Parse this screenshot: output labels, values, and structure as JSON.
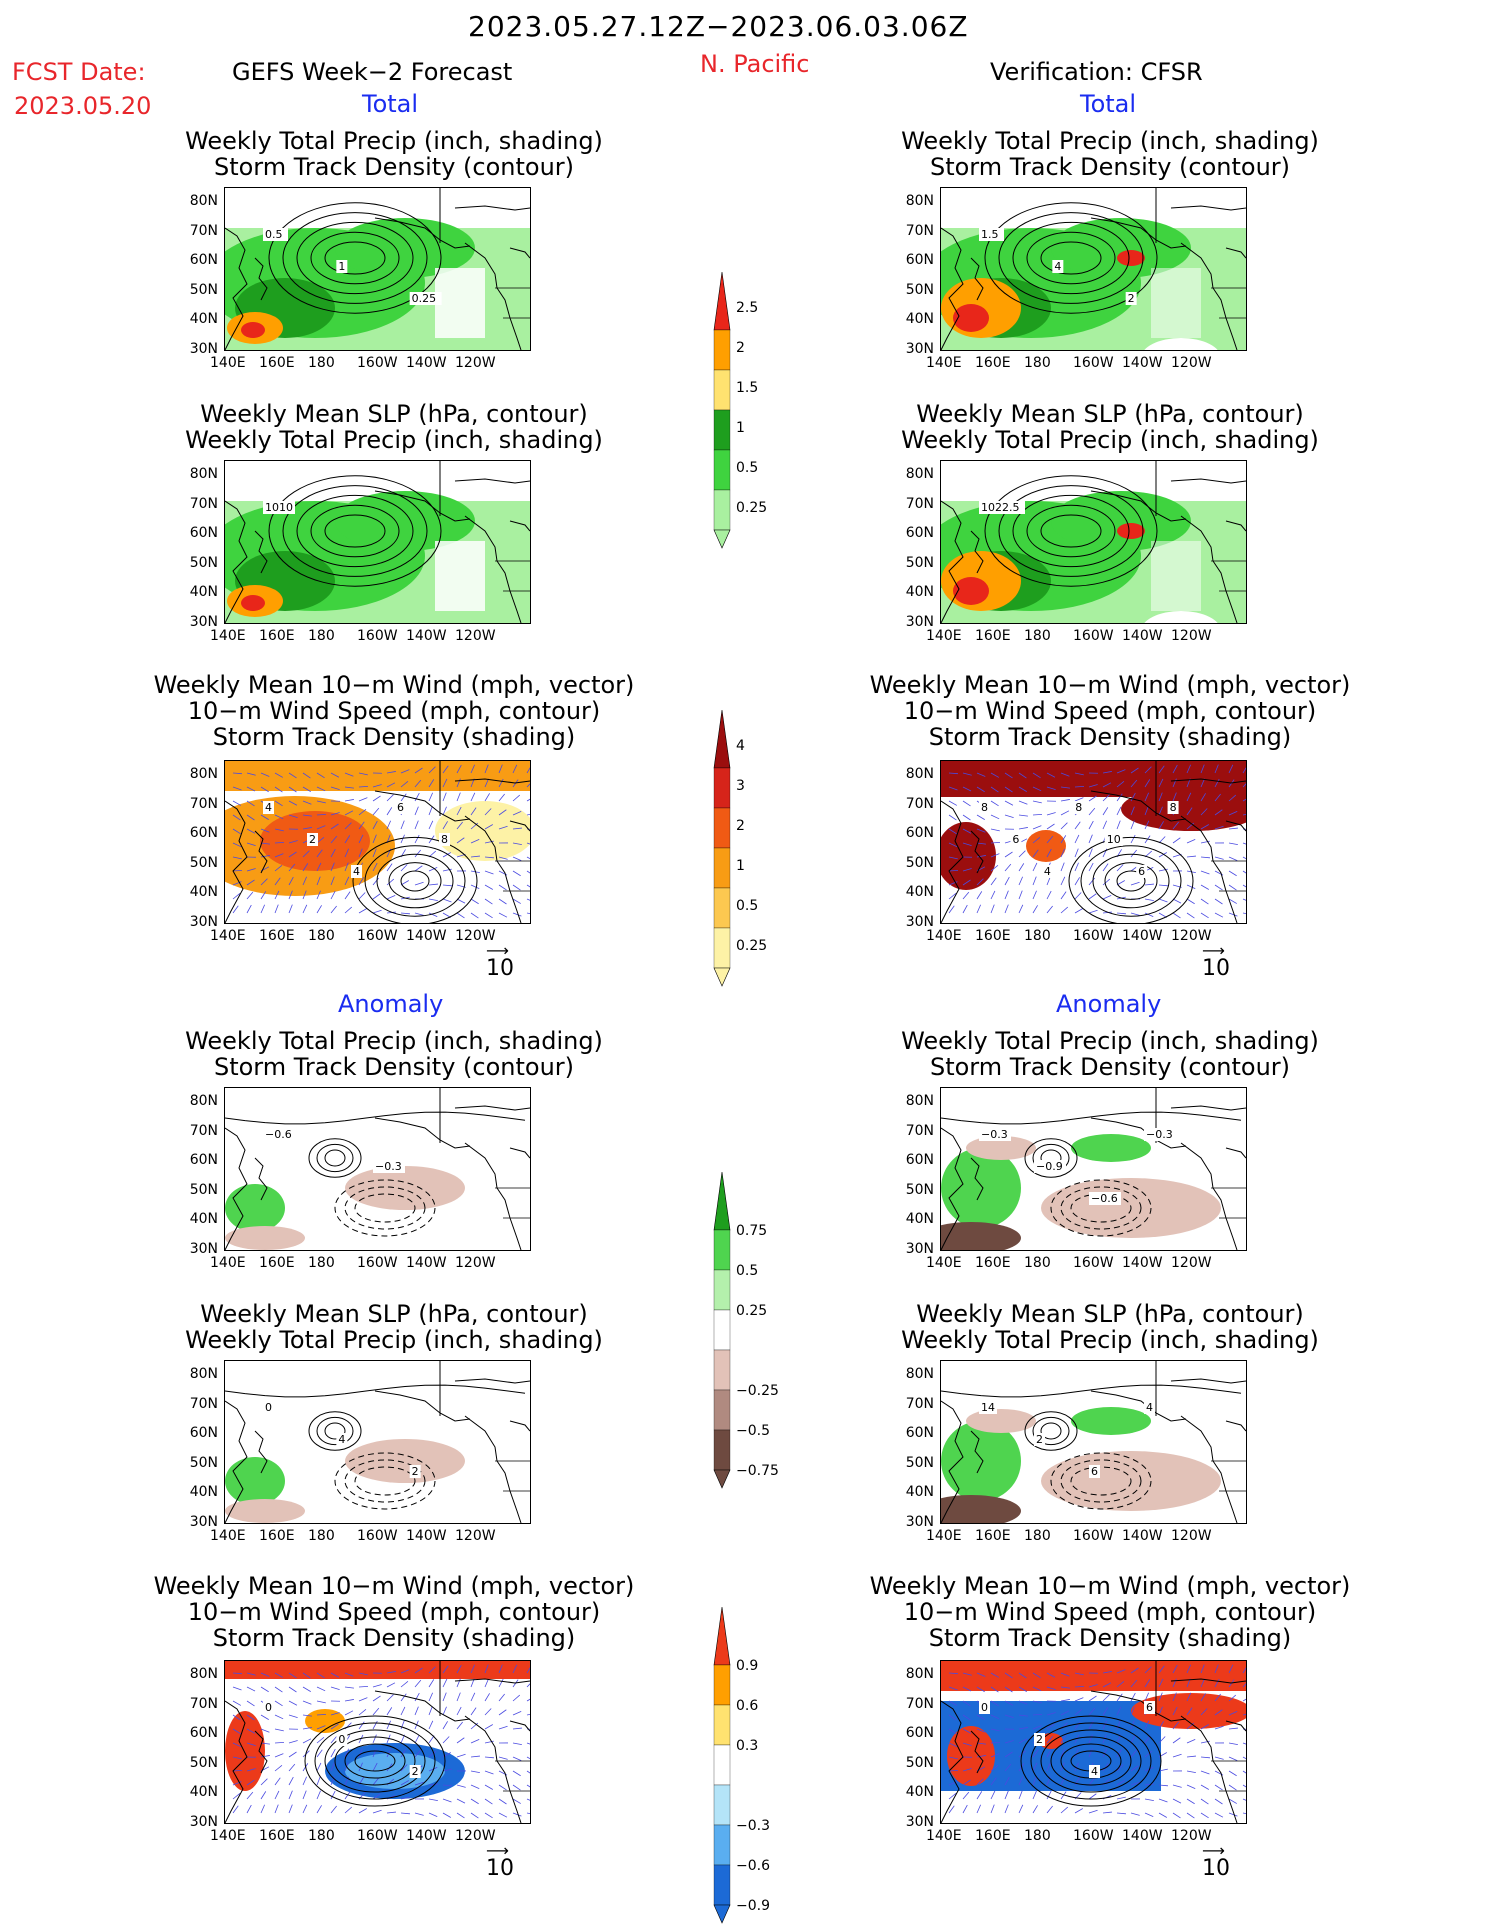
{
  "header": {
    "date_range": "2023.05.27.12Z−2023.06.03.06Z",
    "fcst_label": "FCST Date:",
    "fcst_date": "2023.05.20",
    "forecast_title": "GEFS Week−2 Forecast",
    "region": "N. Pacific",
    "verification": "Verification: CFSR",
    "total_label": "Total",
    "anomaly_label": "Anomaly"
  },
  "axes": {
    "lat_ticks": [
      "80N",
      "70N",
      "60N",
      "50N",
      "40N",
      "30N"
    ],
    "lon_ticks": [
      "140E",
      "160E",
      "180",
      "160W",
      "140W",
      "120W"
    ]
  },
  "panel_titles": {
    "precip_track": [
      "Weekly Total Precip (inch, shading)",
      "Storm Track Density (contour)"
    ],
    "slp_precip": [
      "Weekly Mean SLP (hPa, contour)",
      "Weekly Total Precip (inch, shading)"
    ],
    "wind_track": [
      "Weekly Mean 10−m Wind (mph, vector)",
      "10−m Wind Speed (mph, contour)",
      "Storm Track Density (shading)"
    ]
  },
  "vector_ref": "10",
  "colorbars": {
    "precip_total": {
      "labels": [
        "2.5",
        "2",
        "1.5",
        "1",
        "0.5",
        "0.25"
      ],
      "colors": [
        "#e8261a",
        "#ff9f00",
        "#ffe270",
        "#1e9e1e",
        "#3fd33f",
        "#a9f0a0"
      ]
    },
    "track_total": {
      "labels": [
        "4",
        "3",
        "2",
        "1",
        "0.5",
        "0.25"
      ],
      "colors": [
        "#9b0e0e",
        "#d6241a",
        "#f05a14",
        "#f89c14",
        "#fcc850",
        "#fdf2a6"
      ]
    },
    "precip_anom": {
      "labels": [
        "0.75",
        "0.5",
        "0.25",
        "−0.25",
        "−0.5",
        "−0.75"
      ],
      "colors": [
        "#1e9e1e",
        "#4fd44f",
        "#b4f0ac",
        "#ffffff",
        "#e2c2b8",
        "#b08a80",
        "#6e4a40"
      ]
    },
    "track_anom": {
      "labels": [
        "0.9",
        "0.6",
        "0.3",
        "−0.3",
        "−0.6",
        "−0.9"
      ],
      "colors": [
        "#ec3a1a",
        "#ff9f00",
        "#ffe270",
        "#ffffff",
        "#b4e4f8",
        "#5aaef0",
        "#1c6ad6"
      ]
    }
  },
  "contour_labels": {
    "fcst_precip_track_total": [
      "0.5",
      "1",
      "0.25"
    ],
    "fcst_slp_total": [
      "1010"
    ],
    "fcst_wind_total": [
      "4",
      "2",
      "4",
      "6",
      "8"
    ],
    "ver_precip_track_total": [
      "1.5",
      "4",
      "2"
    ],
    "ver_slp_total": [
      "1022.5"
    ],
    "ver_wind_total": [
      "8",
      "6",
      "4",
      "8",
      "10",
      "6",
      "8"
    ],
    "fcst_precip_track_anom": [
      "−0.6",
      "−0.3"
    ],
    "fcst_slp_anom": [
      "0",
      "4",
      "2"
    ],
    "fcst_wind_anom": [
      "0",
      "0",
      "2"
    ],
    "ver_precip_track_anom": [
      "−0.3",
      "−0.9",
      "−0.6",
      "−0.3"
    ],
    "ver_slp_anom": [
      "14",
      "2",
      "6",
      "4"
    ],
    "ver_wind_anom": [
      "0",
      "2",
      "4",
      "6"
    ]
  },
  "colors": {
    "accent_red": "#e8262b",
    "accent_blue": "#1a2cf0"
  }
}
